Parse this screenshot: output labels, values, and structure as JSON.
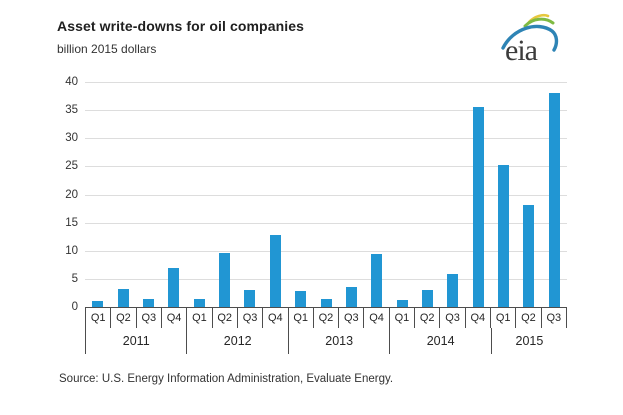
{
  "header": {
    "title": "Asset write-downs for oil companies",
    "subtitle": "billion 2015 dollars"
  },
  "logo": {
    "name": "eia",
    "text": "eia"
  },
  "source": "Source:  U.S. Energy Information Administration, Evaluate Energy.",
  "colors": {
    "bar": "#2196d3",
    "gridline": "#dddddd",
    "axis": "#4d4d4d",
    "text": "#262626",
    "logo_blue": "#2e84b5",
    "logo_green": "#7fba42",
    "logo_yellow": "#e6c83d"
  },
  "chart_data": {
    "type": "bar",
    "title": "Asset write-downs for oil companies",
    "ylabel": "billion 2015 dollars",
    "xlabel": "",
    "ylim": [
      0,
      40
    ],
    "yticks": [
      0,
      5,
      10,
      15,
      20,
      25,
      30,
      35,
      40
    ],
    "grid": true,
    "legend": false,
    "categories": [
      "2011 Q1",
      "2011 Q2",
      "2011 Q3",
      "2011 Q4",
      "2012 Q1",
      "2012 Q2",
      "2012 Q3",
      "2012 Q4",
      "2013 Q1",
      "2013 Q2",
      "2013 Q3",
      "2013 Q4",
      "2014 Q1",
      "2014 Q2",
      "2014 Q3",
      "2014 Q4",
      "2015 Q1",
      "2015 Q2",
      "2015 Q3"
    ],
    "values": [
      1.0,
      3.2,
      1.4,
      7.0,
      1.4,
      9.6,
      3.0,
      12.8,
      2.9,
      1.4,
      3.6,
      9.4,
      1.2,
      3.1,
      5.8,
      35.6,
      25.3,
      18.1,
      38.0
    ],
    "groups": [
      {
        "year": "2011",
        "quarters": [
          "Q1",
          "Q2",
          "Q3",
          "Q4"
        ],
        "values": [
          1.0,
          3.2,
          1.4,
          7.0
        ]
      },
      {
        "year": "2012",
        "quarters": [
          "Q1",
          "Q2",
          "Q3",
          "Q4"
        ],
        "values": [
          1.4,
          9.6,
          3.0,
          12.8
        ]
      },
      {
        "year": "2013",
        "quarters": [
          "Q1",
          "Q2",
          "Q3",
          "Q4"
        ],
        "values": [
          2.9,
          1.4,
          3.6,
          9.4
        ]
      },
      {
        "year": "2014",
        "quarters": [
          "Q1",
          "Q2",
          "Q3",
          "Q4"
        ],
        "values": [
          1.2,
          3.1,
          5.8,
          35.6
        ]
      },
      {
        "year": "2015",
        "quarters": [
          "Q1",
          "Q2",
          "Q3"
        ],
        "values": [
          25.3,
          18.1,
          38.0
        ]
      }
    ]
  }
}
